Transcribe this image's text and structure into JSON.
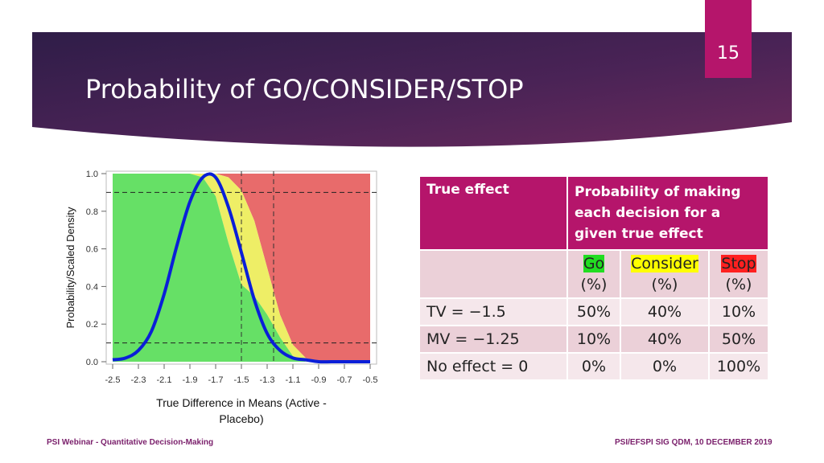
{
  "slide": {
    "title": "Probability of GO/CONSIDER/STOP",
    "page_number": "15",
    "footer_left": "PSI Webinar - Quantitative Decision-Making",
    "footer_right": "PSI/EFSPI SIG QDM, 10 DECEMBER 2019"
  },
  "colors": {
    "banner_dark": "#2f1d48",
    "banner_light": "#6a2a5c",
    "accent": "#b5156b",
    "go_region": "#66e066",
    "consider_region": "#eeee66",
    "stop_region": "#e86b6b",
    "curve": "#0a1fd8"
  },
  "chart_data": {
    "type": "area",
    "xlabel": "True Difference in Means (Active - Placebo)",
    "ylabel": "Probability/Scaled Density",
    "xlim": [
      -2.5,
      -0.5
    ],
    "ylim": [
      0,
      1
    ],
    "x_ticks": [
      "-2.5",
      "-2.3",
      "-2.1",
      "-1.9",
      "-1.7",
      "-1.5",
      "-1.3",
      "-1.1",
      "-0.9",
      "-0.7",
      "-0.5"
    ],
    "y_ticks": [
      "0.0",
      "0.2",
      "0.4",
      "0.6",
      "0.8",
      "1.0"
    ],
    "x": [
      -2.5,
      -2.4,
      -2.3,
      -2.2,
      -2.1,
      -2.0,
      -1.9,
      -1.8,
      -1.7,
      -1.6,
      -1.5,
      -1.4,
      -1.3,
      -1.2,
      -1.1,
      -1.0,
      -0.9,
      -0.8,
      -0.7,
      -0.6,
      -0.5
    ],
    "series": [
      {
        "values": [
          0.0,
          0.0,
          0.0,
          0.0,
          0.0,
          0.0,
          0.0,
          0.0,
          0.0,
          0.02,
          0.09,
          0.25,
          0.5,
          0.75,
          0.91,
          0.98,
          1.0,
          1.0,
          1.0,
          1.0,
          1.0
        ]
      },
      {
        "values": [
          0.0,
          0.0,
          0.0,
          0.0,
          0.0,
          0.0,
          0.0,
          0.02,
          0.12,
          0.35,
          0.5,
          0.4,
          0.25,
          0.12,
          0.06,
          0.02,
          0.0,
          0.0,
          0.0,
          0.0,
          0.0
        ]
      },
      {
        "values": [
          1.0,
          1.0,
          1.0,
          1.0,
          1.0,
          1.0,
          1.0,
          0.98,
          0.88,
          0.63,
          0.41,
          0.35,
          0.25,
          0.13,
          0.03,
          0.0,
          0.0,
          0.0,
          0.0,
          0.0,
          0.0
        ]
      },
      {
        "values": [
          0.01,
          0.02,
          0.06,
          0.16,
          0.36,
          0.62,
          0.85,
          0.98,
          0.98,
          0.82,
          0.58,
          0.33,
          0.15,
          0.06,
          0.02,
          0.01,
          0.0,
          0.0,
          0.0,
          0.0,
          0.0
        ]
      }
    ],
    "reference_lines": {
      "horizontal": [
        0.1,
        0.9
      ],
      "vertical": [
        -1.5,
        -1.25
      ]
    },
    "grid": false
  },
  "table": {
    "header": [
      "True effect",
      "Probability of making each decision for a given true effect"
    ],
    "sub_header": {
      "go": "Go",
      "consider": "Consider",
      "stop": "Stop",
      "unit": "(%)"
    },
    "rows": [
      {
        "label": "TV = −1.5",
        "go": "50%",
        "consider": "40%",
        "stop": "10%"
      },
      {
        "label": "MV = −1.25",
        "go": "10%",
        "consider": "40%",
        "stop": "50%"
      },
      {
        "label": "No effect = 0",
        "go": "0%",
        "consider": "0%",
        "stop": "100%"
      }
    ]
  }
}
